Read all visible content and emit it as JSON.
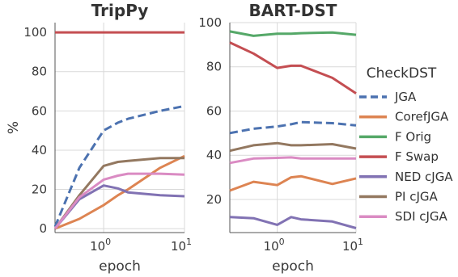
{
  "chart_data": [
    {
      "type": "line",
      "title": "TripPy",
      "xlabel": "epoch",
      "ylabel": "%",
      "xscale": "log",
      "xlim": [
        0.25,
        10
      ],
      "ylim": [
        -2,
        105
      ],
      "yticks": [
        0,
        20,
        40,
        60,
        80,
        100
      ],
      "xticks": [
        {
          "value": 1,
          "label": "10",
          "exp": "0"
        },
        {
          "value": 10,
          "label": "10",
          "exp": "1"
        }
      ],
      "grid": true,
      "x": [
        0.25,
        0.5,
        1,
        1.5,
        2,
        5,
        10
      ],
      "series": [
        {
          "name": "JGA",
          "values": [
            1,
            31,
            50,
            54,
            56,
            60,
            62.5
          ]
        },
        {
          "name": "CorefJGA",
          "values": [
            0,
            5,
            12,
            17,
            20,
            31,
            37
          ]
        },
        {
          "name": "F Orig",
          "values": [
            null,
            null,
            null,
            null,
            null,
            null,
            null
          ]
        },
        {
          "name": "F Swap",
          "values": [
            100,
            100,
            100,
            100,
            100,
            100,
            100
          ]
        },
        {
          "name": "NED cJGA",
          "values": [
            0,
            15,
            22,
            20.5,
            18.5,
            17,
            16.5
          ]
        },
        {
          "name": "PI cJGA",
          "values": [
            0,
            17,
            32,
            34,
            34.5,
            36,
            36
          ]
        },
        {
          "name": "SDI cJGA",
          "values": [
            0,
            16,
            25,
            27,
            28,
            28,
            27.5
          ]
        }
      ]
    },
    {
      "type": "line",
      "title": "BART-DST",
      "xlabel": "epoch",
      "ylabel": "",
      "xscale": "log",
      "xlim": [
        0.25,
        10
      ],
      "ylim": [
        5,
        100
      ],
      "yticks": [
        20,
        40,
        60,
        80,
        100
      ],
      "xticks": [
        {
          "value": 1,
          "label": "10",
          "exp": "0"
        },
        {
          "value": 10,
          "label": "10",
          "exp": "1"
        }
      ],
      "grid": true,
      "x": [
        0.25,
        0.5,
        1,
        1.5,
        2,
        5,
        10
      ],
      "series": [
        {
          "name": "JGA",
          "values": [
            50,
            52,
            53,
            54,
            55,
            54.5,
            53.5
          ]
        },
        {
          "name": "CorefJGA",
          "values": [
            24,
            28,
            26.5,
            30,
            30.5,
            27,
            29.5
          ]
        },
        {
          "name": "F Orig",
          "values": [
            96,
            94,
            95,
            95,
            95.2,
            95.5,
            94.5
          ]
        },
        {
          "name": "F Swap",
          "values": [
            91,
            86,
            79.5,
            80.5,
            80.5,
            75,
            68
          ]
        },
        {
          "name": "NED cJGA",
          "values": [
            12,
            11.5,
            8.5,
            12,
            11,
            10,
            7
          ]
        },
        {
          "name": "PI cJGA",
          "values": [
            42,
            44.5,
            45.5,
            44.5,
            44.5,
            45,
            43
          ]
        },
        {
          "name": "SDI cJGA",
          "values": [
            36.5,
            38.5,
            38.8,
            39,
            38.5,
            38.5,
            38.5
          ]
        }
      ]
    }
  ],
  "legend": {
    "title": "CheckDST",
    "placement": "right",
    "items": [
      {
        "label": "JGA",
        "color": "#4c72b0",
        "dashed": true
      },
      {
        "label": "CorefJGA",
        "color": "#dd8452",
        "dashed": false
      },
      {
        "label": "F Orig",
        "color": "#55a868",
        "dashed": false
      },
      {
        "label": "F Swap",
        "color": "#c44e52",
        "dashed": false
      },
      {
        "label": "NED cJGA",
        "color": "#8172b3",
        "dashed": false
      },
      {
        "label": "PI cJGA",
        "color": "#937860",
        "dashed": false
      },
      {
        "label": "SDI cJGA",
        "color": "#da8bc3",
        "dashed": false
      }
    ]
  }
}
